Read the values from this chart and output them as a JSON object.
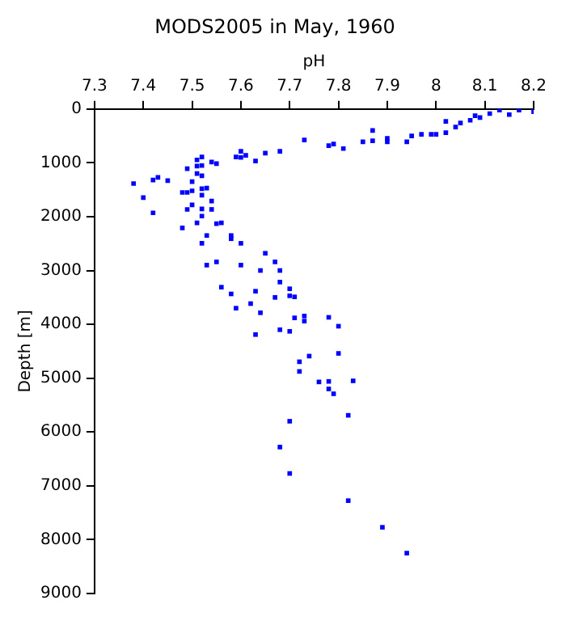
{
  "chart_data": {
    "type": "scatter",
    "title": "MODS2005 in May, 1960",
    "xlabel": "pH",
    "ylabel": "Depth [m]",
    "marker": "square",
    "grid": false,
    "legend": false,
    "xlim": [
      7.3,
      8.2
    ],
    "xticks": [
      7.3,
      7.4,
      7.5,
      7.6,
      7.7,
      7.8,
      7.9,
      8,
      8.1,
      8.2
    ],
    "ylim": [
      9000,
      0
    ],
    "yticks": [
      0,
      1000,
      2000,
      3000,
      4000,
      5000,
      6000,
      7000,
      8000,
      9000
    ],
    "series": [
      {
        "color": "#0000ff",
        "x": [
          8.2,
          8.17,
          8.15,
          8.13,
          8.11,
          8.08,
          8.09,
          8.07,
          8.05,
          8.04,
          8.02,
          8.02,
          8.0,
          7.99,
          7.97,
          7.95,
          7.94,
          7.9,
          7.9,
          7.87,
          7.87,
          7.85,
          7.81,
          7.79,
          7.78,
          7.73,
          7.68,
          7.65,
          7.63,
          7.6,
          7.59,
          7.61,
          7.6,
          7.55,
          7.54,
          7.52,
          7.51,
          7.51,
          7.52,
          7.49,
          7.51,
          7.52,
          7.38,
          7.42,
          7.43,
          7.45,
          7.5,
          7.48,
          7.49,
          7.5,
          7.52,
          7.53,
          7.52,
          7.4,
          7.49,
          7.5,
          7.54,
          7.54,
          7.52,
          7.42,
          7.52,
          7.51,
          7.55,
          7.56,
          7.48,
          7.53,
          7.52,
          7.58,
          7.58,
          7.6,
          7.65,
          7.67,
          7.68,
          7.64,
          7.53,
          7.55,
          7.6,
          7.68,
          7.7,
          7.56,
          7.58,
          7.63,
          7.7,
          7.71,
          7.67,
          7.62,
          7.59,
          7.64,
          7.71,
          7.73,
          7.73,
          7.63,
          7.68,
          7.7,
          7.8,
          7.78,
          7.8,
          7.74,
          7.72,
          7.72,
          7.76,
          7.78,
          7.78,
          7.79,
          7.83,
          7.82,
          7.7,
          7.68,
          7.7,
          7.82,
          7.89,
          7.94
        ],
        "values": [
          50,
          20,
          105,
          20,
          85,
          125,
          160,
          210,
          260,
          335,
          440,
          230,
          470,
          470,
          470,
          500,
          610,
          545,
          610,
          400,
          590,
          610,
          735,
          650,
          680,
          575,
          785,
          820,
          965,
          785,
          890,
          860,
          900,
          1015,
          985,
          890,
          945,
          1060,
          1050,
          1110,
          1200,
          1240,
          1385,
          1320,
          1270,
          1330,
          1350,
          1550,
          1550,
          1520,
          1480,
          1470,
          1600,
          1645,
          1865,
          1780,
          1710,
          1865,
          1855,
          1930,
          1990,
          2115,
          2130,
          2115,
          2210,
          2350,
          2495,
          2350,
          2410,
          2495,
          2680,
          2840,
          3000,
          3000,
          2900,
          2840,
          2900,
          3215,
          3340,
          3310,
          3435,
          3385,
          3470,
          3490,
          3500,
          3615,
          3700,
          3785,
          3880,
          3845,
          3940,
          4190,
          4100,
          4130,
          4035,
          3870,
          4540,
          4590,
          4695,
          4875,
          5070,
          5060,
          5200,
          5290,
          5050,
          5690,
          5800,
          6280,
          6770,
          7275,
          7770,
          8250
        ]
      }
    ]
  }
}
